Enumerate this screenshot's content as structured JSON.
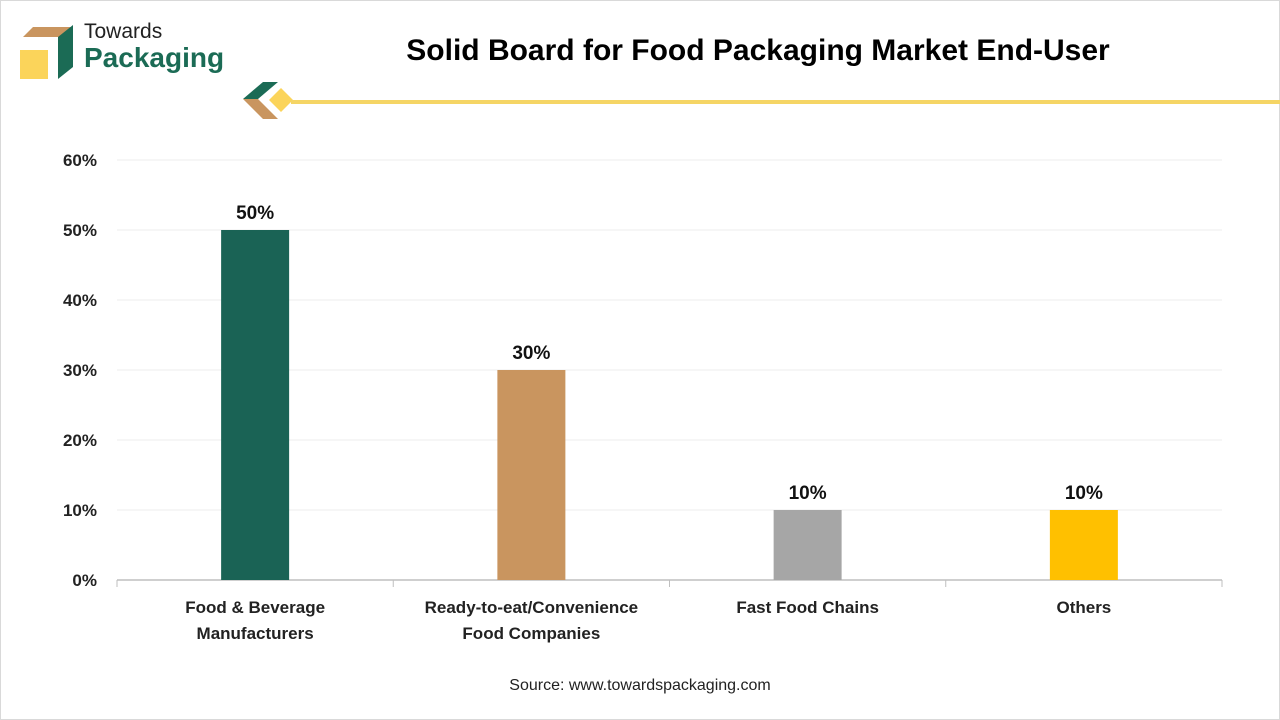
{
  "logo": {
    "line1": "Towards",
    "line2": "Packaging"
  },
  "source": "Source: www.towardspackaging.com",
  "colors": {
    "brand_green": "#1b6b55",
    "accent_yellow": "#f5d565"
  },
  "chart_data": {
    "type": "bar",
    "title": "Solid Board for Food Packaging Market End-User",
    "categories": [
      [
        "Food & Beverage",
        "Manufacturers"
      ],
      [
        "Ready-to-eat/Convenience",
        "Food Companies"
      ],
      [
        "Fast Food Chains"
      ],
      [
        "Others"
      ]
    ],
    "values": [
      50,
      30,
      10,
      10
    ],
    "data_labels": [
      "50%",
      "30%",
      "10%",
      "10%"
    ],
    "bar_colors": [
      "#1a6355",
      "#c9955f",
      "#a6a6a6",
      "#ffc000"
    ],
    "ylim": [
      0,
      60
    ],
    "yticks": [
      "0%",
      "10%",
      "20%",
      "30%",
      "40%",
      "50%",
      "60%"
    ],
    "xlabel": "",
    "ylabel": "",
    "grid": true,
    "legend": "none"
  }
}
